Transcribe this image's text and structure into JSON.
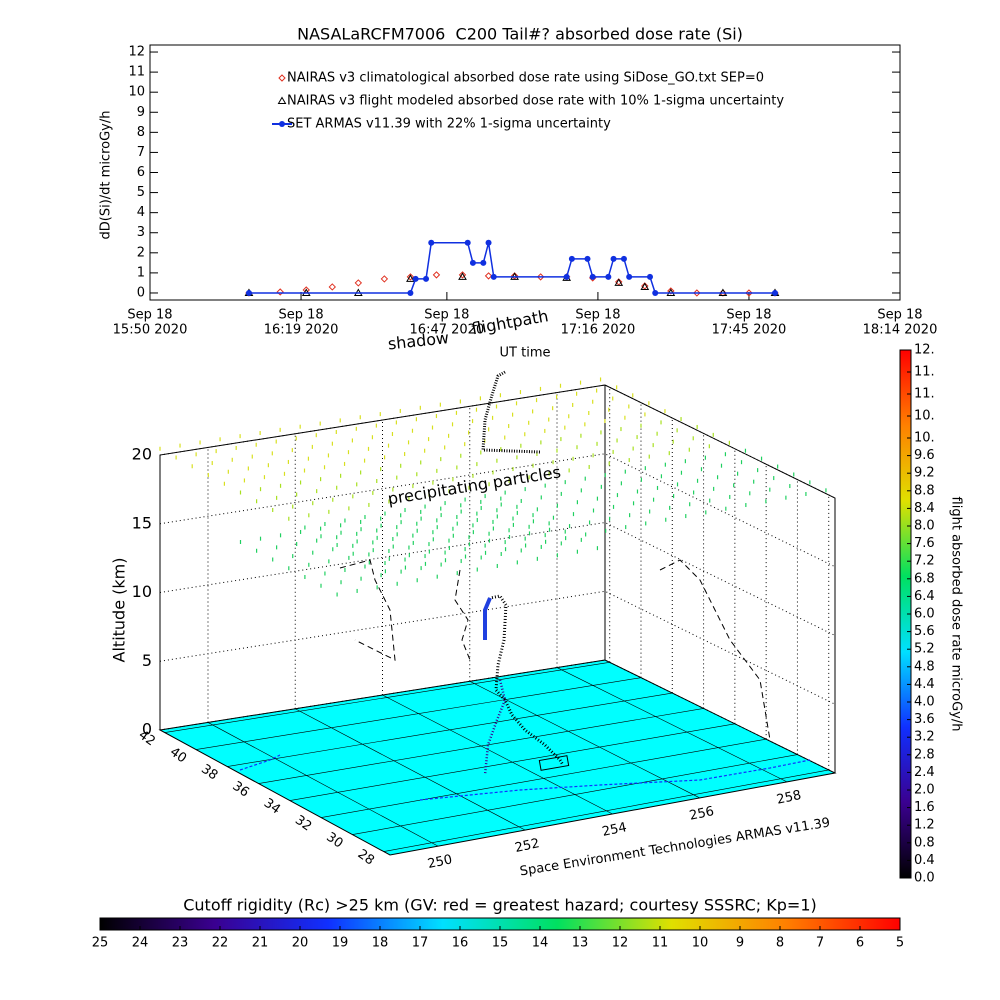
{
  "chart_data": [
    {
      "type": "line",
      "title": "NASALaRCFM7006  C200 Tail#? absorbed dose rate (Si)",
      "ylabel": "dD(Si)/dt microGy/h",
      "xlim": [
        "2020-09-18 15:50",
        "2020-09-18 18:14"
      ],
      "xticks": [
        {
          "value": "2020-09-18 15:50",
          "label": [
            "Sep 18",
            "15:50 2020"
          ]
        },
        {
          "value": "2020-09-18 16:19",
          "label": [
            "Sep 18",
            "16:19 2020"
          ]
        },
        {
          "value": "2020-09-18 16:47",
          "label": [
            "Sep 18",
            "16:47 2020"
          ]
        },
        {
          "value": "2020-09-18 17:16",
          "label": [
            "Sep 18",
            "17:16 2020"
          ]
        },
        {
          "value": "2020-09-18 17:45",
          "label": [
            "Sep 18",
            "17:45 2020"
          ]
        },
        {
          "value": "2020-09-18 18:14",
          "label": [
            "Sep 18",
            "18:14 2020"
          ]
        }
      ],
      "ylim": [
        -0.35,
        12.35
      ],
      "yticks": [
        0,
        1,
        2,
        3,
        4,
        5,
        6,
        7,
        8,
        9,
        10,
        11,
        12
      ],
      "series": [
        {
          "name": "NAIRAS v3 climatological absorbed dose rate using SiDose_GO.txt SEP=0",
          "color": "#e03020",
          "marker": "diamond",
          "x": [
            "2020-09-18 16:09",
            "2020-09-18 16:15",
            "2020-09-18 16:20",
            "2020-09-18 16:25",
            "2020-09-18 16:30",
            "2020-09-18 16:35",
            "2020-09-18 16:40",
            "2020-09-18 16:45",
            "2020-09-18 16:50",
            "2020-09-18 16:55",
            "2020-09-18 17:00",
            "2020-09-18 17:05",
            "2020-09-18 17:10",
            "2020-09-18 17:15",
            "2020-09-18 17:20",
            "2020-09-18 17:25",
            "2020-09-18 17:30",
            "2020-09-18 17:35",
            "2020-09-18 17:40",
            "2020-09-18 17:45",
            "2020-09-18 17:50"
          ],
          "values": [
            0,
            0.05,
            0.15,
            0.3,
            0.5,
            0.7,
            0.8,
            0.9,
            0.9,
            0.85,
            0.85,
            0.8,
            0.8,
            0.75,
            0.55,
            0.35,
            0.1,
            0,
            0,
            0,
            0
          ]
        },
        {
          "name": "NAIRAS v3 flight modeled absorbed dose rate with 10% 1-sigma uncertainty",
          "color": "#000000",
          "marker": "triangle",
          "x": [
            "2020-09-18 16:09",
            "2020-09-18 16:20",
            "2020-09-18 16:30",
            "2020-09-18 16:40",
            "2020-09-18 16:50",
            "2020-09-18 17:00",
            "2020-09-18 17:10",
            "2020-09-18 17:20",
            "2020-09-18 17:25",
            "2020-09-18 17:30",
            "2020-09-18 17:40",
            "2020-09-18 17:50"
          ],
          "values": [
            0,
            0,
            0,
            0.7,
            0.8,
            0.8,
            0.75,
            0.5,
            0.3,
            0,
            0,
            0
          ]
        },
        {
          "name": "SET ARMAS v11.39 with 22% 1-sigma uncertainty",
          "color": "#1030e0",
          "marker": "circle",
          "x": [
            "2020-09-18 16:09",
            "2020-09-18 16:40",
            "2020-09-18 16:41",
            "2020-09-18 16:43",
            "2020-09-18 16:44",
            "2020-09-18 16:51",
            "2020-09-18 16:52",
            "2020-09-18 16:54",
            "2020-09-18 16:55",
            "2020-09-18 16:56",
            "2020-09-18 17:10",
            "2020-09-18 17:11",
            "2020-09-18 17:14",
            "2020-09-18 17:15",
            "2020-09-18 17:18",
            "2020-09-18 17:19",
            "2020-09-18 17:21",
            "2020-09-18 17:22",
            "2020-09-18 17:26",
            "2020-09-18 17:27",
            "2020-09-18 17:50"
          ],
          "values": [
            0,
            0,
            0.7,
            0.7,
            2.5,
            2.5,
            1.5,
            1.5,
            2.5,
            0.8,
            0.8,
            1.7,
            1.7,
            0.8,
            0.8,
            1.7,
            1.7,
            0.8,
            0.8,
            0,
            0
          ]
        }
      ]
    },
    {
      "type": "3d",
      "annotations": [
        "shadow",
        "flightpath",
        "UT time",
        "precipitating particles"
      ],
      "zlabel": "Altitude (km)",
      "zlim": [
        0,
        20
      ],
      "zticks": [
        0,
        5,
        10,
        15,
        20
      ],
      "ylim": [
        27.6,
        42.3
      ],
      "yticks": [
        28,
        30,
        32,
        34,
        36,
        38,
        40,
        42
      ],
      "xlim": [
        248.9,
        259.1
      ],
      "xticks": [
        250,
        252,
        254,
        256,
        258
      ],
      "floor_color": "#00ffff",
      "credit": "Space Environment Technologies ARMAS v11.39",
      "colorbar": {
        "label": "flight absorbed dose rate microGy/h",
        "lim": [
          0,
          12
        ],
        "colors": [
          "#000000",
          "#3a0090",
          "#1030ff",
          "#00e0ff",
          "#00e060",
          "#e0e000",
          "#ff8000",
          "#ff0000"
        ],
        "ticks": [
          {
            "value": 0,
            "label": "0.0"
          },
          0.4,
          0.8,
          1.2,
          1.6,
          {
            "value": 2,
            "label": "2.0"
          },
          2.4,
          2.8,
          3.2,
          3.6,
          {
            "value": 4,
            "label": "4.0"
          },
          4.4,
          4.8,
          5.2,
          5.6,
          {
            "value": 6,
            "label": "6.0"
          },
          6.4,
          6.8,
          7.2,
          7.6,
          {
            "value": 8,
            "label": "8.0"
          },
          8.4,
          8.8,
          9.2,
          9.6,
          {
            "value": 10,
            "label": "10."
          },
          {
            "value": 10.5,
            "label": "10."
          },
          {
            "value": 11,
            "label": "11."
          },
          {
            "value": 11.5,
            "label": "11."
          },
          {
            "value": 12,
            "label": "12."
          }
        ]
      },
      "rigidity_bar": {
        "label": "Cutoff rigidity (Rc) >25 km (GV: red = greatest hazard; courtesy SSSRC; Kp=1)",
        "lim": [
          25,
          5
        ],
        "colors": [
          "#000000",
          "#3a0090",
          "#1030ff",
          "#00e0ff",
          "#00e060",
          "#e0e000",
          "#ff8000",
          "#ff0000"
        ],
        "ticks": [
          25,
          24,
          23,
          22,
          21,
          20,
          19,
          18,
          17,
          16,
          15,
          14,
          13,
          12,
          11,
          10,
          9,
          8,
          7,
          6,
          5
        ]
      }
    }
  ]
}
